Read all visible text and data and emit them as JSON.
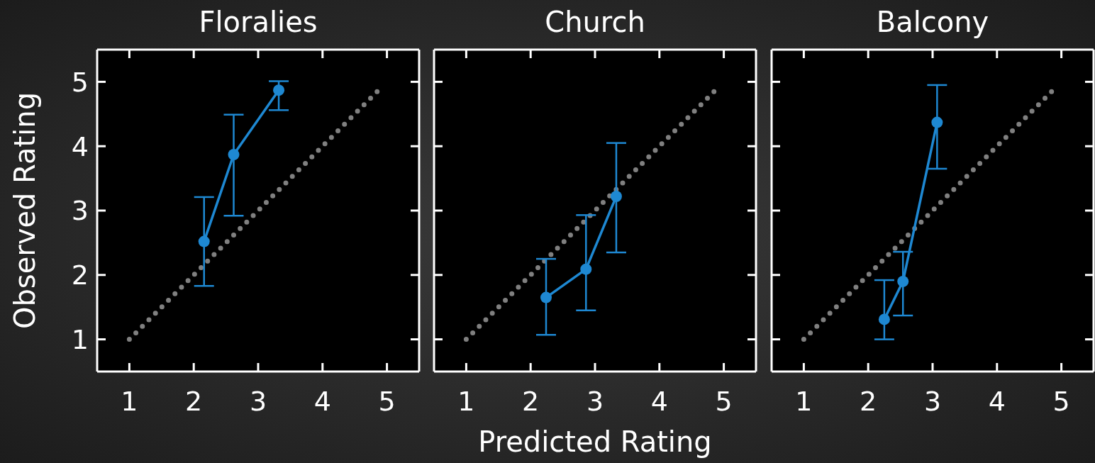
{
  "chart_data": [
    {
      "type": "line",
      "title": "Floralies",
      "ylabel": "Observed Rating",
      "xlim": [
        0.5,
        5.5
      ],
      "ylim": [
        0.5,
        5.5
      ],
      "xticks": [
        1,
        2,
        3,
        4,
        5
      ],
      "yticks": [
        1,
        2,
        3,
        4,
        5
      ],
      "series": [
        {
          "color": "#808080",
          "line_style": "dotted",
          "marker": "none",
          "x": [
            1,
            4.9
          ],
          "values": [
            1,
            4.9
          ]
        },
        {
          "color": "#1e88d2",
          "marker": "circle",
          "x": [
            2.16,
            2.62,
            3.32
          ],
          "values": [
            2.52,
            3.87,
            4.87
          ],
          "errors": [
            [
              1.83,
              3.21
            ],
            [
              2.92,
              4.49
            ],
            [
              4.56,
              5.01
            ]
          ]
        }
      ]
    },
    {
      "type": "line",
      "title": "Church",
      "xlabel": "Predicted Rating",
      "xlim": [
        0.5,
        5.5
      ],
      "ylim": [
        0.5,
        5.5
      ],
      "xticks": [
        1,
        2,
        3,
        4,
        5
      ],
      "yticks": [
        1,
        2,
        3,
        4,
        5
      ],
      "tick_labels": "x",
      "series": [
        {
          "color": "#808080",
          "line_style": "dotted",
          "marker": "none",
          "x": [
            1,
            4.9
          ],
          "values": [
            1,
            4.9
          ]
        },
        {
          "color": "#1e88d2",
          "marker": "circle",
          "x": [
            2.24,
            2.86,
            3.33
          ],
          "values": [
            1.65,
            2.09,
            3.22
          ],
          "errors": [
            [
              1.07,
              2.25
            ],
            [
              1.45,
              2.93
            ],
            [
              2.35,
              4.05
            ]
          ]
        }
      ]
    },
    {
      "type": "line",
      "title": "Balcony",
      "xlim": [
        0.5,
        5.5
      ],
      "ylim": [
        0.5,
        5.5
      ],
      "xticks": [
        1,
        2,
        3,
        4,
        5
      ],
      "yticks": [
        1,
        2,
        3,
        4,
        5
      ],
      "tick_labels": "x",
      "series": [
        {
          "color": "#808080",
          "line_style": "dotted",
          "marker": "none",
          "x": [
            1,
            4.9
          ],
          "values": [
            1,
            4.9
          ]
        },
        {
          "color": "#1e88d2",
          "marker": "circle",
          "x": [
            2.25,
            2.54,
            3.07
          ],
          "values": [
            1.31,
            1.9,
            4.37
          ],
          "errors": [
            [
              1.0,
              1.92
            ],
            [
              1.37,
              2.36
            ],
            [
              3.65,
              4.95
            ]
          ]
        }
      ]
    }
  ]
}
